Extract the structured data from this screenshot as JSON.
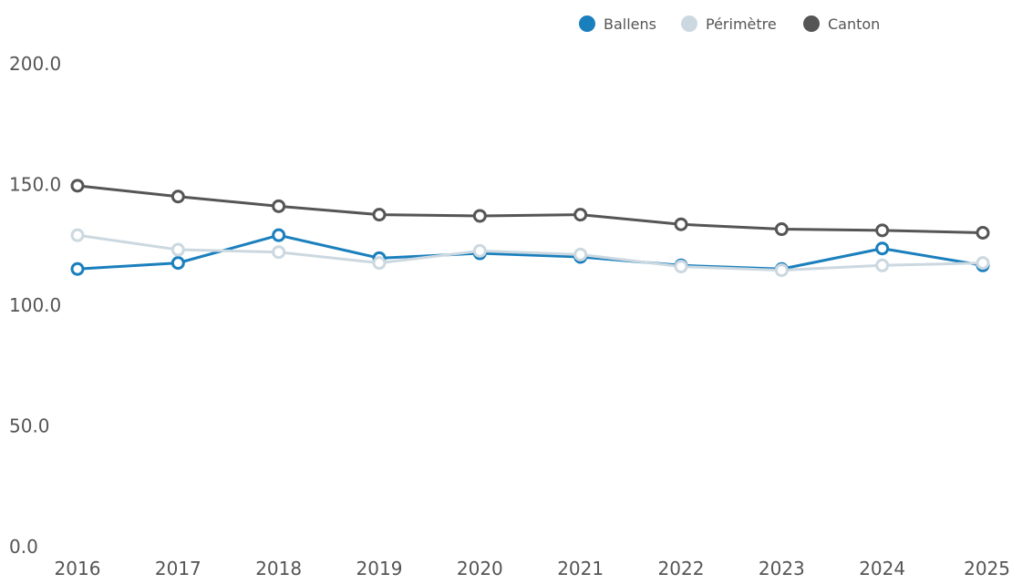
{
  "chart_data": {
    "type": "line",
    "title": "",
    "xlabel": "",
    "ylabel": "",
    "categories": [
      "2016",
      "2017",
      "2018",
      "2019",
      "2020",
      "2021",
      "2022",
      "2023",
      "2024",
      "2025"
    ],
    "ylim": [
      0,
      200
    ],
    "yticks": [
      "0.0",
      "50.0",
      "100.0",
      "150.0",
      "200.0"
    ],
    "grid": false,
    "legend_position": "top-right",
    "series": [
      {
        "name": "Ballens",
        "color": "#1a7fbd",
        "values": [
          115.0,
          117.5,
          129.0,
          119.5,
          121.5,
          120.0,
          116.5,
          115.0,
          123.5,
          116.5
        ]
      },
      {
        "name": "Périmètre",
        "color": "#ccd8e0",
        "values": [
          129.0,
          123.0,
          122.0,
          117.5,
          122.5,
          121.0,
          116.0,
          114.5,
          116.5,
          117.5
        ]
      },
      {
        "name": "Canton",
        "color": "#555555",
        "values": [
          149.5,
          145.0,
          141.0,
          137.5,
          137.0,
          137.5,
          133.5,
          131.5,
          131.0,
          130.0
        ]
      }
    ]
  }
}
